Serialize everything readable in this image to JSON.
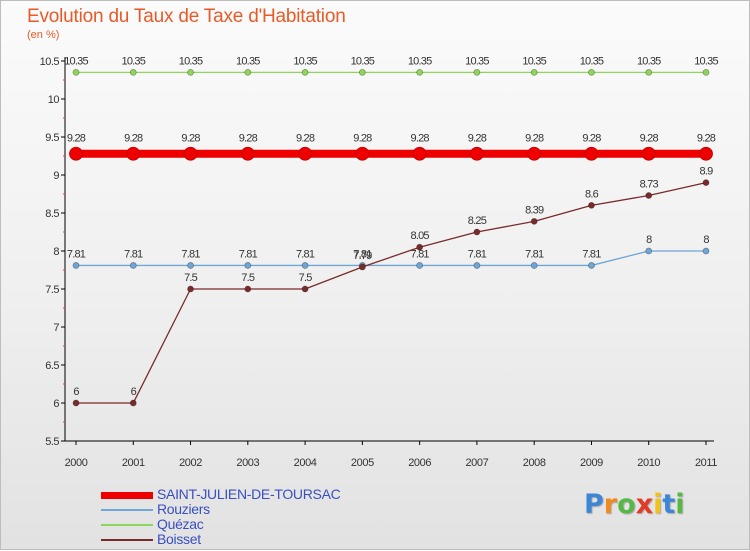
{
  "header": {
    "title": "Evolution du Taux de Taxe d'Habitation",
    "subtitle": "(en %)"
  },
  "chart_data": {
    "type": "line",
    "title": "Evolution du Taux de Taxe d'Habitation",
    "ylabel": "(en %)",
    "ylim": [
      5.5,
      10.5
    ],
    "yticks": [
      5.5,
      6,
      6.5,
      7,
      7.5,
      8,
      8.5,
      9,
      9.5,
      10,
      10.5
    ],
    "ytick_labels": [
      "5.5",
      "6",
      "6.5",
      "7",
      "7.5",
      "8",
      "8.5",
      "9",
      "9.5",
      "10",
      "10.5"
    ],
    "x": [
      "2000",
      "2001",
      "2002",
      "2003",
      "2004",
      "2005",
      "2006",
      "2007",
      "2008",
      "2009",
      "2010",
      "2011"
    ],
    "grid": false,
    "legend_position": "bottom-left",
    "series": [
      {
        "name": "SAINT-JULIEN-DE-TOURSAC",
        "color": "#ee0000",
        "values": [
          9.28,
          9.28,
          9.28,
          9.28,
          9.28,
          9.28,
          9.28,
          9.28,
          9.28,
          9.28,
          9.28,
          9.28
        ],
        "labels": [
          "9.28",
          "9.28",
          "9.28",
          "9.28",
          "9.28",
          "9.28",
          "9.28",
          "9.28",
          "9.28",
          "9.28",
          "9.28",
          "9.28"
        ]
      },
      {
        "name": "Rouziers",
        "color": "#6ea6d6",
        "values": [
          7.81,
          7.81,
          7.81,
          7.81,
          7.81,
          7.81,
          7.81,
          7.81,
          7.81,
          7.81,
          8,
          8
        ],
        "labels": [
          "7.81",
          "7.81",
          "7.81",
          "7.81",
          "7.81",
          "7.81",
          "7.81",
          "7.81",
          "7.81",
          "7.81",
          "8",
          "8"
        ]
      },
      {
        "name": "Quézac",
        "color": "#8ed65a",
        "values": [
          10.35,
          10.35,
          10.35,
          10.35,
          10.35,
          10.35,
          10.35,
          10.35,
          10.35,
          10.35,
          10.35,
          10.35
        ],
        "labels": [
          "10.35",
          "10.35",
          "10.35",
          "10.35",
          "10.35",
          "10.35",
          "10.35",
          "10.35",
          "10.35",
          "10.35",
          "10.35",
          "10.35"
        ]
      },
      {
        "name": "Boisset",
        "color": "#7a2a2a",
        "values": [
          6,
          6,
          7.5,
          7.5,
          7.5,
          7.79,
          8.05,
          8.25,
          8.39,
          8.6,
          8.73,
          8.9
        ],
        "labels": [
          "6",
          "6",
          "7.5",
          "7.5",
          "7.5",
          "7.79",
          "8.05",
          "8.25",
          "8.39",
          "8.6",
          "8.73",
          "8.9"
        ]
      }
    ]
  },
  "legend": {
    "items": [
      {
        "label": "SAINT-JULIEN-DE-TOURSAC",
        "color": "#ee0000"
      },
      {
        "label": "Rouziers",
        "color": "#6ea6d6"
      },
      {
        "label": "Quézac",
        "color": "#8ed65a"
      },
      {
        "label": "Boisset",
        "color": "#7a2a2a"
      }
    ]
  },
  "logo": {
    "letters": [
      "P",
      "r",
      "o",
      "x",
      "i",
      "t",
      "i"
    ],
    "colors": [
      "#3d86d6",
      "#f08a1e",
      "#58b846",
      "#e23a26",
      "#f2c21a",
      "#3d86d6",
      "#58b846"
    ]
  }
}
